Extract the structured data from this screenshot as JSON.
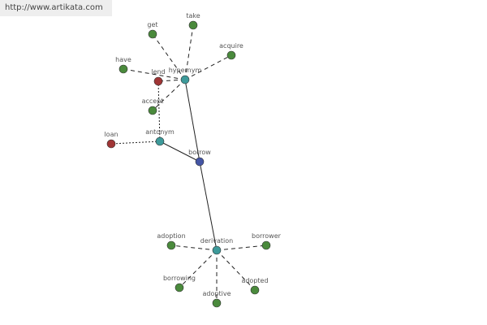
{
  "header": {
    "url": "http://www.artikata.com"
  },
  "nodes": [
    {
      "label": "borrow"
    },
    {
      "label": "hypernym"
    },
    {
      "label": "antonym"
    },
    {
      "label": "derivation"
    },
    {
      "label": "get"
    },
    {
      "label": "take"
    },
    {
      "label": "acquire"
    },
    {
      "label": "have"
    },
    {
      "label": "lend"
    },
    {
      "label": "accept"
    },
    {
      "label": "loan"
    },
    {
      "label": "adoption"
    },
    {
      "label": "borrower"
    },
    {
      "label": "borrowing"
    },
    {
      "label": "adoptive"
    },
    {
      "label": "adopted"
    }
  ]
}
